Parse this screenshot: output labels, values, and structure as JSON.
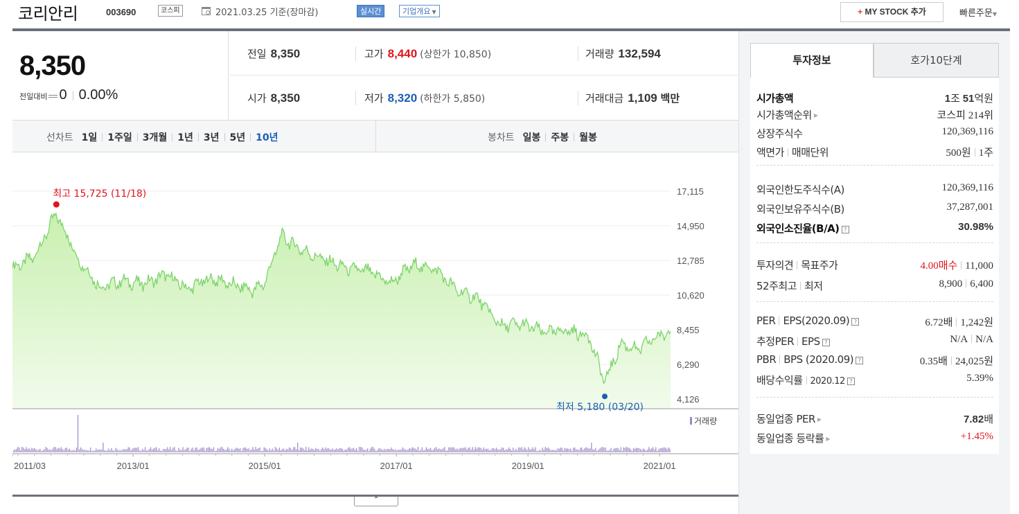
{
  "header": {
    "company_name": "코리안리",
    "stock_code": "003690",
    "market_badge": "코스피",
    "as_of": "2021.03.25 기준(장마감)",
    "realtime_label": "실시간",
    "company_info_label": "기업개요",
    "my_stock_label": "MY STOCK 추가",
    "quick_order_label": "빠른주문"
  },
  "price": {
    "current": "8,350",
    "change_label": "전일대비",
    "change_value": "0",
    "change_rate": "0.00%"
  },
  "summary": {
    "prev_label": "전일",
    "prev_value": "8,350",
    "high_label": "고가",
    "high_value": "8,440",
    "upper_limit": "(상한가 10,850)",
    "volume_label": "거래량",
    "volume_value": "132,594",
    "open_label": "시가",
    "open_value": "8,350",
    "low_label": "저가",
    "low_value": "8,320",
    "lower_limit": "(하한가 5,850)",
    "amount_label": "거래대금",
    "amount_value": "1,109",
    "amount_unit": "백만"
  },
  "line_tabs": {
    "title": "선차트",
    "items": [
      "1일",
      "1주일",
      "3개월",
      "1년",
      "3년",
      "5년",
      "10년"
    ],
    "selected": "10년"
  },
  "candle_tabs": {
    "title": "봉차트",
    "items": [
      "일봉",
      "주봉",
      "월봉"
    ]
  },
  "chart_data": {
    "type": "area",
    "y_ticks": [
      "17,115",
      "14,950",
      "12,785",
      "10,620",
      "8,455",
      "6,290",
      "4,126"
    ],
    "ylim": [
      4126,
      17115
    ],
    "x_ticks": [
      "2011/03",
      "2013/01",
      "2015/01",
      "2017/01",
      "2019/01",
      "2021/01"
    ],
    "high_annotation": "최고 15,725 (11/18)",
    "low_annotation": "최저 5,180 (03/20)",
    "volume_label": "거래량",
    "x": [
      "2011.03",
      "2011.07",
      "2011.11",
      "2012.03",
      "2012.07",
      "2012.11",
      "2013.03",
      "2013.07",
      "2013.11",
      "2014.03",
      "2014.07",
      "2014.11",
      "2015.01",
      "2015.04",
      "2015.08",
      "2015.12",
      "2016.04",
      "2016.08",
      "2016.12",
      "2017.04",
      "2017.08",
      "2017.12",
      "2018.04",
      "2018.08",
      "2018.12",
      "2019.04",
      "2019.08",
      "2019.12",
      "2020.03",
      "2020.06",
      "2020.09",
      "2020.12",
      "2021.03"
    ],
    "series": [
      {
        "values": [
          12300,
          13000,
          15725,
          12900,
          11100,
          11500,
          11300,
          11900,
          11000,
          11700,
          11300,
          10900,
          11400,
          14300,
          13400,
          12800,
          12300,
          12100,
          11400,
          12500,
          12300,
          10900,
          10400,
          8700,
          8800,
          8300,
          8400,
          8100,
          5200,
          7600,
          7200,
          7900,
          8350
        ]
      }
    ],
    "colors": {
      "line": "#7cd36a",
      "fill_top": "#c9f0b0",
      "fill_bottom": "#f2fbec",
      "volume": "#9b88c6",
      "high": "#e0141e",
      "low": "#1a5fb4"
    }
  },
  "right_panel": {
    "tab_invest": "투자정보",
    "tab_orderbook": "호가10단계",
    "market_cap_label": "시가총액",
    "market_cap_a": "1",
    "market_cap_b": "조",
    "market_cap_c": "51",
    "market_cap_d": "억원",
    "market_cap_rank_label": "시가총액순위",
    "market_cap_rank_value": "코스피 214위",
    "shares_label": "상장주식수",
    "shares_value": "120,369,116",
    "par_label": "액면가",
    "unit_label": "매매단위",
    "par_value": "500원",
    "unit_value": "1주",
    "foreign_limit_label": "외국인한도주식수(A)",
    "foreign_limit_value": "120,369,116",
    "foreign_hold_label": "외국인보유주식수(B)",
    "foreign_hold_value": "37,287,001",
    "foreign_ratio_label": "외국인소진율(B/A)",
    "foreign_ratio_value": "30.98%",
    "opinion_label": "투자의견",
    "target_label": "목표주가",
    "opinion_value": "4.00매수",
    "target_value": "11,000",
    "w52_high_label": "52주최고",
    "w52_low_label": "최저",
    "w52_high_value": "8,900",
    "w52_low_value": "6,400",
    "per_label": "PER",
    "eps_label": "EPS(2020.09)",
    "per_value": "6.72배",
    "eps_value": "1,242원",
    "est_per_label": "추정PER",
    "est_eps_label": "EPS",
    "est_per_value": "N/A",
    "est_eps_value": "N/A",
    "pbr_label": "PBR",
    "bps_label": "BPS (2020.09)",
    "pbr_value": "0.35배",
    "bps_value": "24,025원",
    "div_label": "배당수익률",
    "div_period": "2020.12",
    "div_value": "5.39%",
    "sector_per_label": "동일업종 PER",
    "sector_per_value": "7.82",
    "sector_per_unit": "배",
    "sector_rate_label": "동일업종 등락률",
    "sector_rate_value": "+1.45%"
  }
}
